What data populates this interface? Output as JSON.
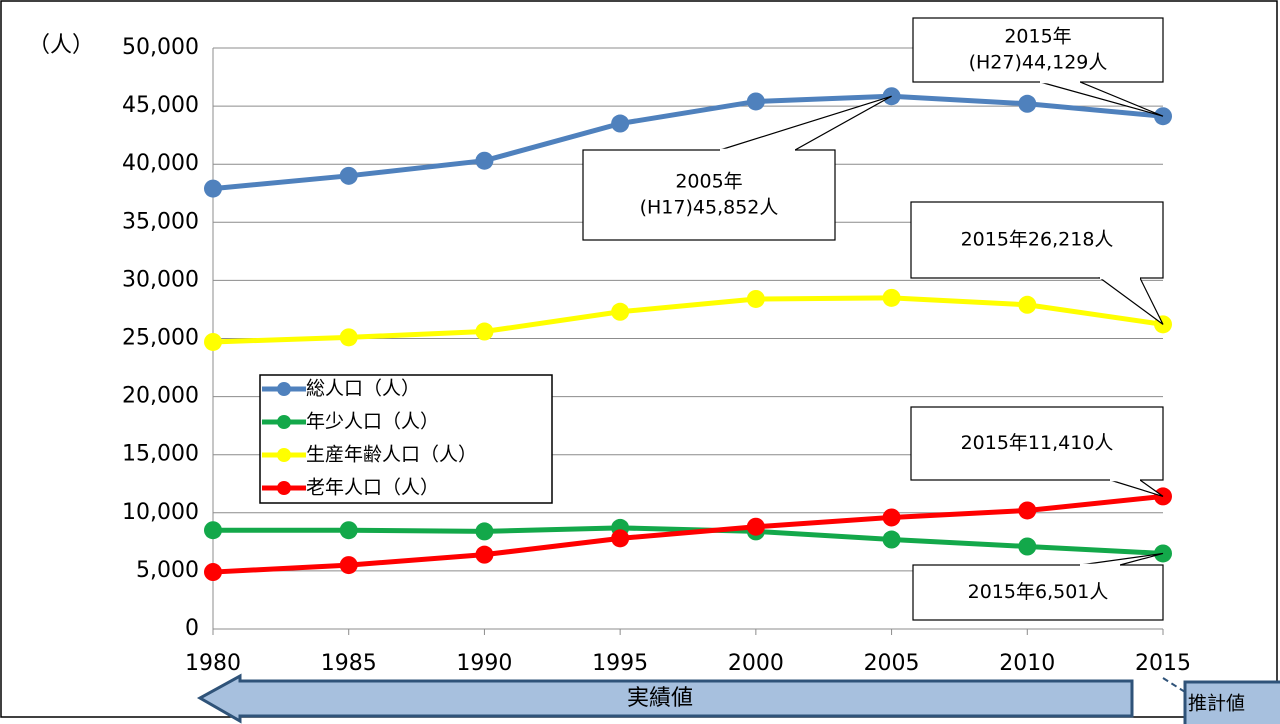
{
  "chart_data": {
    "type": "line",
    "y_unit_label": "（人）",
    "x": [
      1980,
      1985,
      1990,
      1995,
      2000,
      2005,
      2010,
      2015
    ],
    "xlim": [
      1980,
      2015
    ],
    "xticks": [
      1980,
      1985,
      1990,
      1995,
      2000,
      2005,
      2010,
      2015
    ],
    "ylim": [
      0,
      50000
    ],
    "yticks": [
      0,
      {
        "value": 5000,
        "label": "5,000"
      },
      {
        "value": 10000,
        "label": "10,000"
      },
      {
        "value": 15000,
        "label": "15,000"
      },
      {
        "value": 20000,
        "label": "20,000"
      },
      {
        "value": 25000,
        "label": "25,000"
      },
      {
        "value": 30000,
        "label": "30,000"
      },
      {
        "value": 35000,
        "label": "35,000"
      },
      {
        "value": 40000,
        "label": "40,000"
      },
      {
        "value": 45000,
        "label": "45,000"
      },
      {
        "value": 50000,
        "label": "50,000"
      }
    ],
    "grid": true,
    "series": [
      {
        "name": "総人口（人）",
        "color": "#4f81bd",
        "values": [
          37900,
          39000,
          40300,
          43500,
          45400,
          45852,
          45200,
          44129
        ]
      },
      {
        "name": "年少人口（人）",
        "color": "#13a84a",
        "values": [
          8500,
          8500,
          8400,
          8700,
          8400,
          7700,
          7100,
          6501
        ]
      },
      {
        "name": "生産年齢人口（人）",
        "color": "#ffff00",
        "values": [
          24700,
          25100,
          25600,
          27300,
          28400,
          28500,
          27900,
          26218
        ]
      },
      {
        "name": "老年人口（人）",
        "color": "#ff0000",
        "values": [
          4900,
          5500,
          6400,
          7800,
          8800,
          9600,
          10200,
          11410
        ]
      }
    ],
    "annotations": [
      [
        "2015年",
        "(H27)44,129人"
      ],
      [
        "2005年",
        "(H17)45,852人"
      ],
      [
        "2015年26,218人"
      ],
      [
        "2015年11,410人"
      ],
      [
        "2015年6,501人"
      ]
    ],
    "period_labels": [
      "実績値",
      "推計値"
    ]
  }
}
